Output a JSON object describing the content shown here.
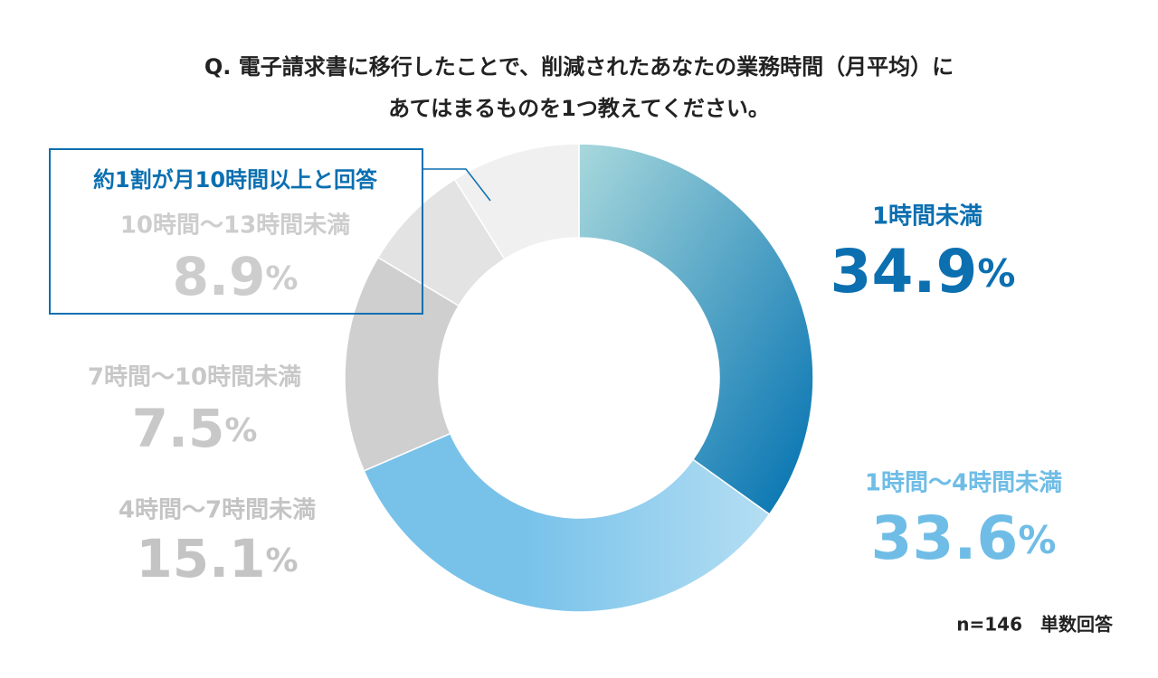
{
  "chart_data": {
    "type": "donut",
    "title": "Q. 電子請求書に移行したことで、削減されたあなたの業務時間（月平均）に",
    "subtitle": "あてはまるものを1つ教えてください。",
    "categories": [
      "1時間未満",
      "1時間〜4時間未満",
      "4時間〜7時間未満",
      "7時間〜10時間未満",
      "10時間〜13時間未満"
    ],
    "values": [
      34.9,
      33.6,
      15.1,
      7.5,
      8.9
    ],
    "unit": "%",
    "colors": [
      "#2a86bd",
      "#86c8ec",
      "#cfcfcf",
      "#e3e3e3",
      "#f0f0f0"
    ],
    "annotation": "約1割が月10時間以上と回答",
    "note": "n=146　単数回答"
  }
}
